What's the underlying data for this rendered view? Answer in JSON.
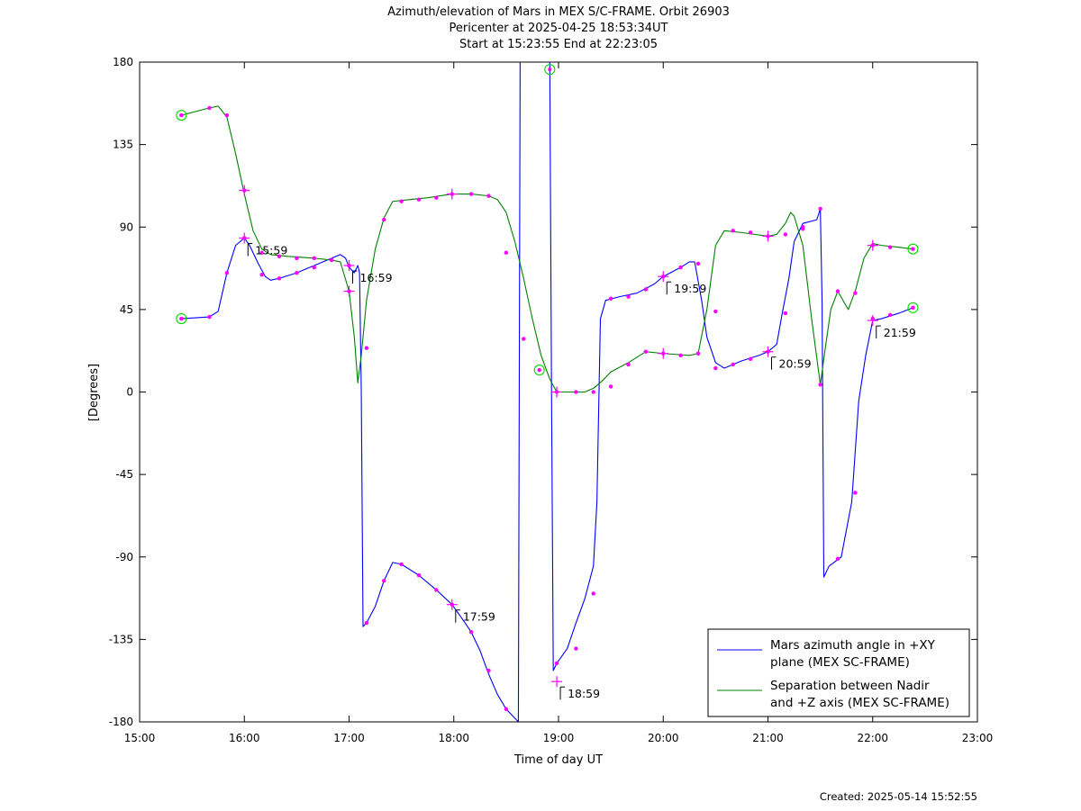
{
  "chart_data": {
    "type": "line",
    "title_lines": [
      "Azimuth/elevation of Mars in MEX S/C-FRAME.  Orbit 26903",
      "Pericenter at 2025-04-25 18:53:34UT",
      "Start at 15:23:55 End at 22:23:05"
    ],
    "xlabel": "Time of day UT",
    "ylabel": "[Degrees]",
    "xlim": [
      "15:00",
      "23:00"
    ],
    "ylim": [
      -180,
      180
    ],
    "x_ticks": [
      "15:00",
      "16:00",
      "17:00",
      "18:00",
      "19:00",
      "20:00",
      "21:00",
      "22:00",
      "23:00"
    ],
    "y_ticks": [
      "180",
      "135",
      "90",
      "45",
      "0",
      "-45",
      "-90",
      "-135",
      "-180"
    ],
    "grid": false,
    "legend_position": "bottom-right",
    "colors": {
      "azimuth": "#0000ff",
      "separation": "#008000",
      "markers": "#ff00ff",
      "endpoints": "#00dd00"
    },
    "series": [
      {
        "key": "azimuth",
        "name_lines": [
          "Mars azimuth angle in +XY",
          "plane (MEX SC-FRAME)"
        ],
        "points": [
          [
            "15:23:55",
            40
          ],
          [
            "15:40",
            41
          ],
          [
            "15:45",
            44
          ],
          [
            "15:50",
            65
          ],
          [
            "15:55",
            80
          ],
          [
            "16:00",
            84
          ],
          [
            "16:03",
            80
          ],
          [
            "16:08",
            70
          ],
          [
            "16:12",
            63
          ],
          [
            "16:15",
            61
          ],
          [
            "16:20",
            62
          ],
          [
            "16:30",
            65
          ],
          [
            "16:40",
            69
          ],
          [
            "16:50",
            73
          ],
          [
            "16:55",
            75
          ],
          [
            "16:58",
            73
          ],
          [
            "17:00",
            68
          ],
          [
            "17:03",
            65
          ],
          [
            "17:05",
            69
          ],
          [
            "17:06",
            65
          ],
          [
            "17:07",
            0
          ],
          [
            "17:08",
            -128
          ],
          [
            "17:10",
            -126
          ],
          [
            "17:15",
            -117
          ],
          [
            "17:20",
            -103
          ],
          [
            "17:25",
            -93
          ],
          [
            "17:30",
            -94
          ],
          [
            "17:40",
            -100
          ],
          [
            "17:50",
            -108
          ],
          [
            "17:59",
            -116
          ],
          [
            "18:05",
            -124
          ],
          [
            "18:10",
            -131
          ],
          [
            "18:15",
            -141
          ],
          [
            "18:20",
            -154
          ],
          [
            "18:25",
            -165
          ],
          [
            "18:30",
            -173
          ],
          [
            "18:37",
            -180
          ],
          [
            "18:38",
            180
          ],
          [
            "18:45",
            180
          ],
          [
            "18:55",
            180
          ],
          [
            "18:56",
            0
          ],
          [
            "18:57",
            -152
          ],
          [
            "18:59",
            -148
          ],
          [
            "19:05",
            -140
          ],
          [
            "19:10",
            -126
          ],
          [
            "19:15",
            -113
          ],
          [
            "19:20",
            -95
          ],
          [
            "19:22",
            -60
          ],
          [
            "19:24",
            40
          ],
          [
            "19:27",
            50
          ],
          [
            "19:35",
            52
          ],
          [
            "19:45",
            54
          ],
          [
            "19:55",
            59
          ],
          [
            "20:00",
            63
          ],
          [
            "20:10",
            68
          ],
          [
            "20:15",
            71
          ],
          [
            "20:18",
            71
          ],
          [
            "20:22",
            50
          ],
          [
            "20:25",
            30
          ],
          [
            "20:30",
            16
          ],
          [
            "20:35",
            13
          ],
          [
            "20:45",
            17
          ],
          [
            "20:55",
            20
          ],
          [
            "21:00",
            22
          ],
          [
            "21:05",
            26
          ],
          [
            "21:08",
            42
          ],
          [
            "21:12",
            62
          ],
          [
            "21:15",
            82
          ],
          [
            "21:20",
            92
          ],
          [
            "21:28",
            94
          ],
          [
            "21:30",
            100
          ],
          [
            "21:31",
            50
          ],
          [
            "21:32",
            -101
          ],
          [
            "21:35",
            -95
          ],
          [
            "21:42",
            -90
          ],
          [
            "21:48",
            -60
          ],
          [
            "21:52",
            -5
          ],
          [
            "21:56",
            20
          ],
          [
            "22:00",
            39
          ],
          [
            "22:05",
            40
          ],
          [
            "22:15",
            43
          ],
          [
            "22:23:05",
            46
          ]
        ],
        "markers": [
          [
            "15:23:55",
            40
          ],
          [
            "15:40",
            41
          ],
          [
            "15:50",
            65
          ],
          [
            "16:00",
            84
          ],
          [
            "16:10",
            64
          ],
          [
            "16:20",
            62
          ],
          [
            "16:30",
            65
          ],
          [
            "16:40",
            68
          ],
          [
            "16:50",
            72
          ],
          [
            "17:00",
            69
          ],
          [
            "17:10",
            -126
          ],
          [
            "17:20",
            -103
          ],
          [
            "17:30",
            -94
          ],
          [
            "17:40",
            -100
          ],
          [
            "17:50",
            -108
          ],
          [
            "17:59",
            -116
          ],
          [
            "18:10",
            -131
          ],
          [
            "18:20",
            -152
          ],
          [
            "18:30",
            -173
          ],
          [
            "18:59",
            -148
          ],
          [
            "19:10",
            -140
          ],
          [
            "19:20",
            -110
          ],
          [
            "19:30",
            51
          ],
          [
            "19:40",
            52
          ],
          [
            "19:50",
            56
          ],
          [
            "20:00",
            63
          ],
          [
            "20:10",
            68
          ],
          [
            "20:20",
            70
          ],
          [
            "20:30",
            13
          ],
          [
            "20:40",
            15
          ],
          [
            "20:50",
            18
          ],
          [
            "21:00",
            22
          ],
          [
            "21:10",
            43
          ],
          [
            "21:20",
            90
          ],
          [
            "21:30",
            100
          ],
          [
            "21:40",
            -91
          ],
          [
            "21:50",
            -55
          ],
          [
            "22:00",
            40
          ],
          [
            "22:10",
            42
          ],
          [
            "22:23:05",
            46
          ]
        ]
      },
      {
        "key": "separation",
        "name_lines": [
          "Separation between Nadir",
          "and +Z axis (MEX SC-FRAME)"
        ],
        "points": [
          [
            "15:23:55",
            151
          ],
          [
            "15:40",
            155
          ],
          [
            "15:45",
            156
          ],
          [
            "15:50",
            150
          ],
          [
            "15:55",
            130
          ],
          [
            "16:00",
            108
          ],
          [
            "16:05",
            88
          ],
          [
            "16:10",
            78
          ],
          [
            "16:15",
            75
          ],
          [
            "16:25",
            74
          ],
          [
            "16:40",
            73
          ],
          [
            "16:50",
            72
          ],
          [
            "16:55",
            71
          ],
          [
            "17:00",
            55
          ],
          [
            "17:03",
            30
          ],
          [
            "17:05",
            5
          ],
          [
            "17:07",
            20
          ],
          [
            "17:10",
            50
          ],
          [
            "17:15",
            78
          ],
          [
            "17:20",
            95
          ],
          [
            "17:25",
            104
          ],
          [
            "17:35",
            105
          ],
          [
            "17:45",
            106
          ],
          [
            "17:59",
            108
          ],
          [
            "18:10",
            108
          ],
          [
            "18:20",
            107
          ],
          [
            "18:25",
            105
          ],
          [
            "18:30",
            98
          ],
          [
            "18:35",
            82
          ],
          [
            "18:40",
            62
          ],
          [
            "18:45",
            40
          ],
          [
            "18:50",
            20
          ],
          [
            "18:55",
            7
          ],
          [
            "18:59",
            0
          ],
          [
            "19:05",
            0
          ],
          [
            "19:15",
            0
          ],
          [
            "19:20",
            2
          ],
          [
            "19:25",
            6
          ],
          [
            "19:30",
            11
          ],
          [
            "19:40",
            16
          ],
          [
            "19:45",
            19
          ],
          [
            "19:50",
            22
          ],
          [
            "20:00",
            21
          ],
          [
            "20:15",
            20
          ],
          [
            "20:20",
            21
          ],
          [
            "20:25",
            45
          ],
          [
            "20:30",
            80
          ],
          [
            "20:35",
            88
          ],
          [
            "20:45",
            87
          ],
          [
            "21:00",
            85
          ],
          [
            "21:05",
            86
          ],
          [
            "21:10",
            92
          ],
          [
            "21:13",
            98
          ],
          [
            "21:15",
            96
          ],
          [
            "21:20",
            80
          ],
          [
            "21:25",
            40
          ],
          [
            "21:30",
            4
          ],
          [
            "21:33",
            25
          ],
          [
            "21:36",
            45
          ],
          [
            "21:40",
            55
          ],
          [
            "21:43",
            50
          ],
          [
            "21:46",
            45
          ],
          [
            "21:50",
            55
          ],
          [
            "21:55",
            73
          ],
          [
            "22:00",
            81
          ],
          [
            "22:05",
            80
          ],
          [
            "22:15",
            79
          ],
          [
            "22:23:05",
            78
          ]
        ],
        "markers": [
          [
            "15:23:55",
            151
          ],
          [
            "15:40",
            155
          ],
          [
            "15:50",
            151
          ],
          [
            "16:00",
            110
          ],
          [
            "16:10",
            76
          ],
          [
            "16:20",
            74
          ],
          [
            "16:30",
            73
          ],
          [
            "16:40",
            73
          ],
          [
            "16:50",
            72
          ],
          [
            "17:00",
            55
          ],
          [
            "17:10",
            24
          ],
          [
            "17:20",
            94
          ],
          [
            "17:30",
            104
          ],
          [
            "17:40",
            105
          ],
          [
            "17:50",
            106
          ],
          [
            "17:59",
            108
          ],
          [
            "18:10",
            108
          ],
          [
            "18:20",
            107
          ],
          [
            "18:30",
            76
          ],
          [
            "18:40",
            29
          ],
          [
            "18:49",
            12
          ],
          [
            "18:59",
            0
          ],
          [
            "19:10",
            0
          ],
          [
            "19:20",
            0
          ],
          [
            "19:30",
            3
          ],
          [
            "19:40",
            15
          ],
          [
            "19:50",
            22
          ],
          [
            "20:00",
            21
          ],
          [
            "20:10",
            20
          ],
          [
            "20:20",
            21
          ],
          [
            "20:30",
            44
          ],
          [
            "20:40",
            88
          ],
          [
            "20:50",
            87
          ],
          [
            "21:00",
            85
          ],
          [
            "21:10",
            86
          ],
          [
            "21:20",
            89
          ],
          [
            "21:30",
            4
          ],
          [
            "21:40",
            55
          ],
          [
            "21:50",
            54
          ],
          [
            "22:00",
            80
          ],
          [
            "22:10",
            79
          ],
          [
            "22:23:05",
            78
          ]
        ]
      }
    ],
    "crosses": [
      [
        "16:00",
        84
      ],
      [
        "16:00",
        110
      ],
      [
        "17:00",
        69
      ],
      [
        "17:00",
        55
      ],
      [
        "17:59",
        108
      ],
      [
        "17:59",
        -116
      ],
      [
        "18:59",
        -158
      ],
      [
        "18:59",
        0
      ],
      [
        "20:00",
        63
      ],
      [
        "20:00",
        21
      ],
      [
        "21:00",
        22
      ],
      [
        "21:00",
        85
      ],
      [
        "22:00",
        39
      ],
      [
        "22:00",
        80
      ]
    ],
    "endpoint_circles": [
      [
        "15:23:55",
        40
      ],
      [
        "15:23:55",
        151
      ],
      [
        "18:49",
        12
      ],
      [
        "18:55",
        176
      ],
      [
        "22:23:05",
        46
      ],
      [
        "22:23:05",
        78
      ]
    ],
    "annotations": [
      {
        "time": "15:59",
        "at": [
          "16:00",
          84
        ],
        "label_above": false
      },
      {
        "time": "16:59",
        "at": [
          "17:00",
          69
        ],
        "label_above": false
      },
      {
        "time": "17:59",
        "at": [
          "17:59",
          -116
        ],
        "label_above": false
      },
      {
        "time": "18:59",
        "at": [
          "18:59",
          -158
        ],
        "label_above": false
      },
      {
        "time": "19:59",
        "at": [
          "20:00",
          63
        ],
        "label_above": false
      },
      {
        "time": "20:59",
        "at": [
          "21:00",
          22
        ],
        "label_above": false
      },
      {
        "time": "21:59",
        "at": [
          "22:00",
          39
        ],
        "label_above": false
      }
    ]
  },
  "footer": {
    "created": "Created: 2025-05-14 15:52:55"
  }
}
